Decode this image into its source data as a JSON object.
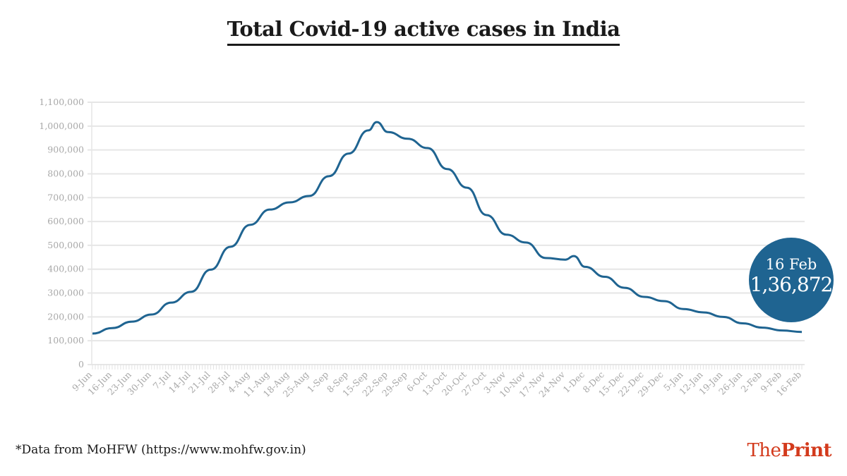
{
  "chart_data": {
    "type": "line",
    "title": "Total Covid-19 active cases in India",
    "xlabel": "",
    "ylabel": "",
    "ylim": [
      0,
      1100000
    ],
    "yticks": [
      0,
      100000,
      200000,
      300000,
      400000,
      500000,
      600000,
      700000,
      800000,
      900000,
      1000000,
      1100000
    ],
    "ytick_labels": [
      "0",
      "100,000",
      "200,000",
      "300,000",
      "400,000",
      "500,000",
      "600,000",
      "700,000",
      "800,000",
      "900,000",
      "1,000,000",
      "1,100,000"
    ],
    "xtick_labels": [
      "9-Jun",
      "16-Jun",
      "23-Jun",
      "30-Jun",
      "7-Jul",
      "14-Jul",
      "21-Jul",
      "28-Jul",
      "4-Aug",
      "11-Aug",
      "18-Aug",
      "25-Aug",
      "1-Sep",
      "8-Sep",
      "15-Sep",
      "22-Sep",
      "29-Sep",
      "6-Oct",
      "13-Oct",
      "20-Oct",
      "27-Oct",
      "3-Nov",
      "10-Nov",
      "17-Nov",
      "24-Nov",
      "1-Dec",
      "8-Dec",
      "15-Dec",
      "22-Dec",
      "29-Dec",
      "5-Jan",
      "12-Jan",
      "19-Jan",
      "26-Jan",
      "2-Feb",
      "9-Feb",
      "16-Feb"
    ],
    "grid": true,
    "color": "#1f6491",
    "series": [
      {
        "x": [
          "9-Jun",
          "16-Jun",
          "23-Jun",
          "30-Jun",
          "7-Jul",
          "14-Jul",
          "21-Jul",
          "28-Jul",
          "4-Aug",
          "11-Aug",
          "18-Aug",
          "25-Aug",
          "1-Sep",
          "8-Sep",
          "15-Sep",
          "18-Sep",
          "22-Sep",
          "29-Sep",
          "6-Oct",
          "13-Oct",
          "20-Oct",
          "27-Oct",
          "3-Nov",
          "10-Nov",
          "17-Nov",
          "24-Nov",
          "27-Nov",
          "1-Dec",
          "8-Dec",
          "15-Dec",
          "22-Dec",
          "29-Dec",
          "5-Jan",
          "12-Jan",
          "19-Jan",
          "26-Jan",
          "2-Feb",
          "9-Feb",
          "16-Feb"
        ],
        "day_index": [
          0,
          7,
          14,
          21,
          28,
          35,
          42,
          49,
          56,
          63,
          70,
          77,
          84,
          91,
          98,
          101,
          105,
          112,
          119,
          126,
          133,
          140,
          147,
          154,
          161,
          168,
          171,
          175,
          182,
          189,
          196,
          203,
          210,
          217,
          224,
          231,
          238,
          245,
          252
        ],
        "values": [
          130000,
          153000,
          180000,
          210000,
          260000,
          305000,
          398000,
          494000,
          586000,
          650000,
          680000,
          707000,
          790000,
          885000,
          982000,
          1017000,
          975000,
          947000,
          908000,
          820000,
          742000,
          627000,
          545000,
          512000,
          447000,
          440000,
          455000,
          410000,
          368000,
          322000,
          284000,
          266000,
          233000,
          219000,
          200000,
          173000,
          155000,
          143000,
          136872
        ]
      }
    ],
    "annotation": {
      "date": "16 Feb",
      "value": "1,36,872"
    }
  },
  "footer": {
    "source": "*Data from MoHFW (https://www.mohfw.gov.in)",
    "logo_the": "The",
    "logo_print": "Print"
  }
}
